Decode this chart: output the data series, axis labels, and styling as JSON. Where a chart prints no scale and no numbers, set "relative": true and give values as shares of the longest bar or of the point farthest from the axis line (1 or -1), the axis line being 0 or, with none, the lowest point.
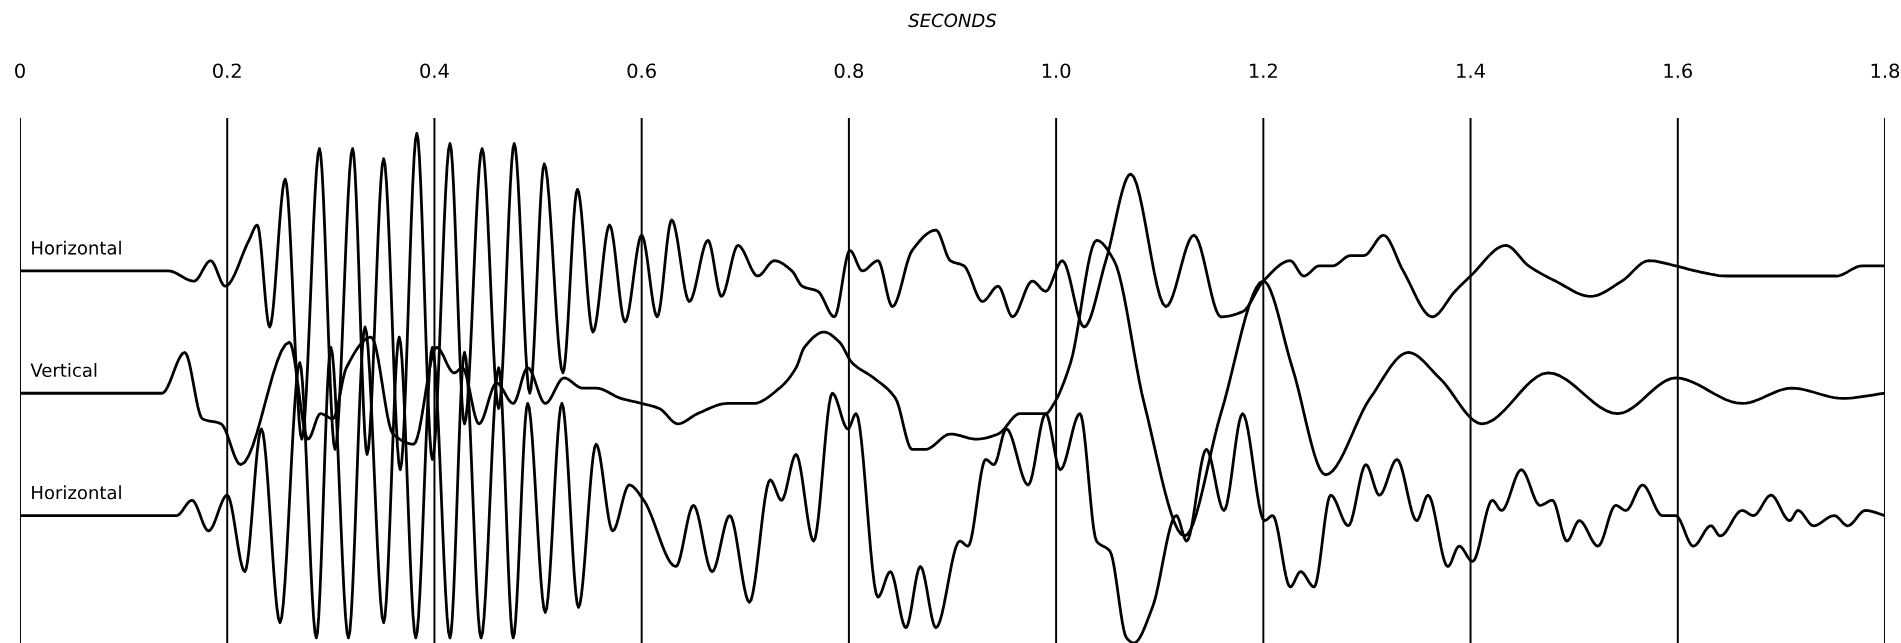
{
  "chart_data": {
    "type": "line",
    "xlabel": "SECONDS",
    "relative": true,
    "grid": "x",
    "legend": false,
    "xlim": [
      0,
      1.8
    ],
    "xticks": [
      0,
      0.2,
      0.4,
      0.6,
      0.8,
      {
        "value": 1.0,
        "label": "1.0"
      },
      1.2,
      1.4,
      1.6,
      1.8
    ],
    "series": [
      {
        "name": "Horizontal",
        "color": "#000000",
        "x": [
          0.002,
          0.143,
          0.168,
          0.184,
          0.198,
          0.221,
          0.229,
          0.241,
          0.256,
          0.272,
          0.289,
          0.304,
          0.321,
          0.335,
          0.351,
          0.367,
          0.383,
          0.398,
          0.415,
          0.429,
          0.446,
          0.462,
          0.477,
          0.492,
          0.506,
          0.524,
          0.538,
          0.553,
          0.569,
          0.584,
          0.6,
          0.615,
          0.629,
          0.646,
          0.664,
          0.677,
          0.693,
          0.712,
          0.728,
          0.745,
          0.755,
          0.77,
          0.786,
          0.801,
          0.813,
          0.828,
          0.842,
          0.861,
          0.884,
          0.898,
          0.911,
          0.929,
          0.944,
          0.958,
          0.977,
          0.99,
          1.006,
          1.027,
          1.048,
          1.072,
          1.106,
          1.133,
          1.159,
          1.18,
          1.2,
          1.226,
          1.239,
          1.254,
          1.267,
          1.284,
          1.297,
          1.316,
          1.335,
          1.363,
          1.385,
          1.4,
          1.434,
          1.456,
          1.482,
          1.516,
          1.546,
          1.572,
          1.598,
          1.617,
          1.647,
          1.695,
          1.733,
          1.753,
          1.778,
          1.8
        ],
        "values": [
          0.73,
          0.73,
          0.71,
          0.75,
          0.7,
          0.79,
          0.82,
          0.62,
          0.91,
          0.4,
          0.97,
          0.38,
          0.97,
          0.37,
          0.95,
          0.34,
          1.0,
          0.36,
          0.98,
          0.43,
          0.97,
          0.46,
          0.98,
          0.49,
          0.94,
          0.53,
          0.89,
          0.61,
          0.82,
          0.63,
          0.8,
          0.64,
          0.83,
          0.67,
          0.79,
          0.68,
          0.78,
          0.72,
          0.75,
          0.73,
          0.7,
          0.69,
          0.64,
          0.77,
          0.73,
          0.75,
          0.66,
          0.77,
          0.81,
          0.75,
          0.74,
          0.67,
          0.7,
          0.64,
          0.71,
          0.69,
          0.75,
          0.62,
          0.75,
          0.92,
          0.66,
          0.8,
          0.64,
          0.65,
          0.71,
          0.75,
          0.72,
          0.74,
          0.74,
          0.76,
          0.76,
          0.8,
          0.73,
          0.64,
          0.69,
          0.72,
          0.78,
          0.74,
          0.71,
          0.68,
          0.71,
          0.75,
          0.74,
          0.73,
          0.72,
          0.72,
          0.72,
          0.72,
          0.74,
          0.74
        ]
      },
      {
        "name": "Vertical",
        "color": "#000000",
        "x": [
          0.002,
          0.137,
          0.159,
          0.176,
          0.194,
          0.213,
          0.26,
          0.278,
          0.29,
          0.302,
          0.315,
          0.339,
          0.36,
          0.38,
          0.402,
          0.419,
          0.427,
          0.443,
          0.46,
          0.476,
          0.49,
          0.507,
          0.525,
          0.543,
          0.556,
          0.58,
          0.6,
          0.617,
          0.635,
          0.654,
          0.683,
          0.708,
          0.733,
          0.749,
          0.757,
          0.776,
          0.791,
          0.803,
          0.824,
          0.845,
          0.861,
          0.874,
          0.898,
          0.923,
          0.944,
          0.965,
          0.99,
          0.998,
          1.014,
          1.039,
          1.056,
          1.085,
          1.124,
          1.159,
          1.2,
          1.228,
          1.26,
          1.303,
          1.34,
          1.37,
          1.411,
          1.475,
          1.542,
          1.598,
          1.662,
          1.71,
          1.759,
          1.8
        ],
        "values": [
          0.49,
          0.49,
          0.57,
          0.44,
          0.43,
          0.35,
          0.59,
          0.4,
          0.45,
          0.44,
          0.54,
          0.6,
          0.41,
          0.39,
          0.58,
          0.53,
          0.54,
          0.43,
          0.51,
          0.47,
          0.54,
          0.47,
          0.52,
          0.5,
          0.5,
          0.48,
          0.47,
          0.46,
          0.43,
          0.45,
          0.47,
          0.47,
          0.5,
          0.54,
          0.58,
          0.61,
          0.59,
          0.55,
          0.52,
          0.48,
          0.38,
          0.38,
          0.41,
          0.4,
          0.41,
          0.45,
          0.45,
          0.47,
          0.55,
          0.79,
          0.75,
          0.47,
          0.21,
          0.45,
          0.71,
          0.54,
          0.33,
          0.48,
          0.57,
          0.52,
          0.43,
          0.53,
          0.45,
          0.52,
          0.47,
          0.5,
          0.48,
          0.49
        ]
      },
      {
        "name": "Horizontal",
        "color": "#000000",
        "x": [
          0.002,
          0.151,
          0.166,
          0.182,
          0.2,
          0.217,
          0.233,
          0.251,
          0.27,
          0.286,
          0.3,
          0.317,
          0.333,
          0.351,
          0.366,
          0.382,
          0.398,
          0.415,
          0.429,
          0.445,
          0.462,
          0.476,
          0.49,
          0.507,
          0.523,
          0.539,
          0.556,
          0.572,
          0.588,
          0.602,
          0.633,
          0.65,
          0.668,
          0.685,
          0.704,
          0.724,
          0.735,
          0.749,
          0.766,
          0.784,
          0.799,
          0.807,
          0.828,
          0.84,
          0.855,
          0.869,
          0.884,
          0.907,
          0.915,
          0.932,
          0.94,
          0.952,
          0.973,
          0.99,
          1.004,
          1.023,
          1.039,
          1.052,
          1.068,
          1.075,
          1.093,
          1.116,
          1.126,
          1.145,
          1.162,
          1.18,
          1.201,
          1.209,
          1.226,
          1.236,
          1.249,
          1.265,
          1.282,
          1.299,
          1.312,
          1.329,
          1.348,
          1.359,
          1.378,
          1.389,
          1.402,
          1.421,
          1.43,
          1.449,
          1.467,
          1.479,
          1.493,
          1.505,
          1.523,
          1.54,
          1.55,
          1.566,
          1.585,
          1.598,
          1.615,
          1.632,
          1.641,
          1.662,
          1.673,
          1.69,
          1.708,
          1.716,
          1.731,
          1.751,
          1.764,
          1.781,
          1.8
        ],
        "values": [
          0.25,
          0.25,
          0.28,
          0.22,
          0.29,
          0.14,
          0.42,
          0.04,
          0.55,
          0.01,
          0.58,
          0.01,
          0.62,
          0.04,
          0.6,
          0.01,
          0.58,
          0.01,
          0.57,
          0.01,
          0.54,
          0.01,
          0.47,
          0.06,
          0.47,
          0.07,
          0.39,
          0.22,
          0.31,
          0.28,
          0.15,
          0.27,
          0.14,
          0.25,
          0.08,
          0.32,
          0.28,
          0.37,
          0.2,
          0.49,
          0.42,
          0.45,
          0.09,
          0.14,
          0.03,
          0.15,
          0.03,
          0.2,
          0.19,
          0.36,
          0.35,
          0.42,
          0.31,
          0.45,
          0.34,
          0.45,
          0.2,
          0.18,
          0.01,
          0.0,
          0.07,
          0.25,
          0.2,
          0.38,
          0.26,
          0.45,
          0.24,
          0.25,
          0.11,
          0.14,
          0.11,
          0.29,
          0.23,
          0.35,
          0.29,
          0.36,
          0.24,
          0.29,
          0.15,
          0.19,
          0.16,
          0.28,
          0.26,
          0.34,
          0.27,
          0.28,
          0.2,
          0.24,
          0.19,
          0.27,
          0.26,
          0.31,
          0.25,
          0.25,
          0.19,
          0.23,
          0.21,
          0.26,
          0.25,
          0.29,
          0.24,
          0.26,
          0.23,
          0.25,
          0.23,
          0.26,
          0.25
        ]
      }
    ]
  }
}
